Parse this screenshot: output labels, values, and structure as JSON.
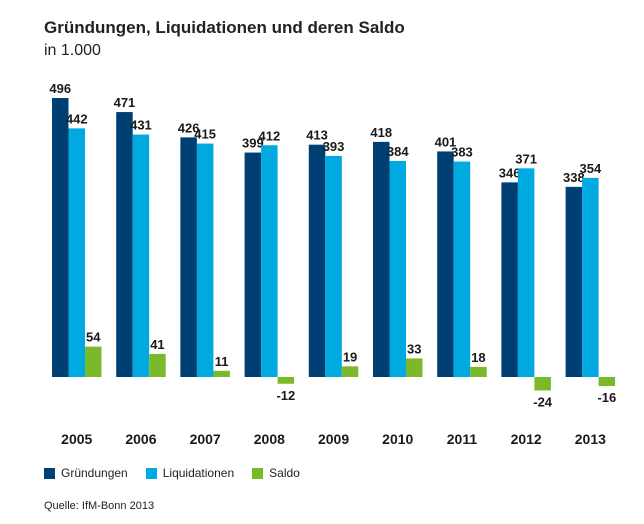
{
  "chart_data": {
    "type": "bar",
    "title": "Gründungen, Liquidationen und deren Saldo",
    "subtitle": "in 1.000",
    "categories": [
      "2005",
      "2006",
      "2007",
      "2008",
      "2009",
      "2010",
      "2011",
      "2012",
      "2013"
    ],
    "series": [
      {
        "name": "Gründungen",
        "color": "#003f73",
        "values": [
          496,
          471,
          426,
          399,
          413,
          418,
          401,
          346,
          338
        ]
      },
      {
        "name": "Liquidationen",
        "color": "#00a9e0",
        "values": [
          442,
          431,
          415,
          412,
          393,
          384,
          383,
          371,
          354
        ]
      },
      {
        "name": "Saldo",
        "color": "#7ab929",
        "values": [
          54,
          41,
          11,
          -12,
          19,
          33,
          18,
          -24,
          -16
        ]
      }
    ],
    "ylim": [
      -30,
      500
    ],
    "grid": false,
    "legend_position": "bottom-left",
    "source": "Quelle: IfM-Bonn 2013"
  }
}
